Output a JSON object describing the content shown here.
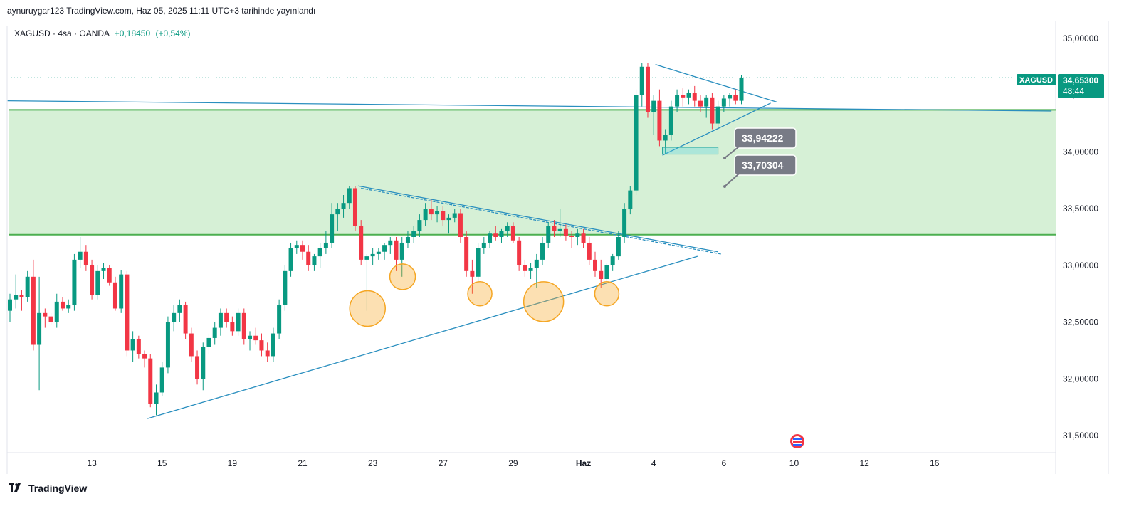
{
  "header": {
    "author": "aynuruygar123",
    "source": "TradingView.com",
    "date_text": "Haz 05, 2025 11:11 UTC+3 tarihinde yayınlandı"
  },
  "symbol_bar": {
    "symbol": "XAGUSD",
    "interval": "4sa",
    "broker": "OANDA",
    "change": "+0,18450",
    "change_pct": "(+0,54%)"
  },
  "price_tag": {
    "symbol": "XAGUSD",
    "price": "34,65300",
    "countdown": "48:44",
    "color": "#089981"
  },
  "footer": {
    "brand": "TradingView"
  },
  "annotations": [
    {
      "label": "33,94222",
      "price": 33.94222
    },
    {
      "label": "33,70304",
      "price": 33.70304
    }
  ],
  "colors": {
    "up": "#089981",
    "down": "#f23645",
    "zone_fill": "#d6f0d6",
    "zone_line": "#4caf50",
    "trendline": "#2a8fbf",
    "circle": "#f5a623",
    "label_bg": "#787b86"
  },
  "chart_data": {
    "type": "candlestick",
    "y_axis": {
      "min": 31.35,
      "max": 35.15,
      "ticks": [
        {
          "value": 35.0,
          "label": "35,00000"
        },
        {
          "value": 34.5,
          "label": "34,50000"
        },
        {
          "value": 34.0,
          "label": "34,00000"
        },
        {
          "value": 33.5,
          "label": "33,50000"
        },
        {
          "value": 33.0,
          "label": "33,00000"
        },
        {
          "value": 32.5,
          "label": "32,50000"
        },
        {
          "value": 32.0,
          "label": "32,00000"
        },
        {
          "value": 31.5,
          "label": "31,50000"
        }
      ]
    },
    "x_axis": {
      "ticks": [
        {
          "bar": 14,
          "label": "13"
        },
        {
          "bar": 26,
          "label": "15"
        },
        {
          "bar": 38,
          "label": "19"
        },
        {
          "bar": 50,
          "label": "21"
        },
        {
          "bar": 62,
          "label": "23"
        },
        {
          "bar": 74,
          "label": "27"
        },
        {
          "bar": 86,
          "label": "29"
        },
        {
          "bar": 98,
          "label": "Haz"
        },
        {
          "bar": 110,
          "label": "4"
        },
        {
          "bar": 122,
          "label": "6"
        },
        {
          "bar": 134,
          "label": "10"
        },
        {
          "bar": 146,
          "label": "12"
        },
        {
          "bar": 158,
          "label": "16"
        }
      ]
    },
    "zone": {
      "top": 34.37,
      "bottom": 33.27
    },
    "last_price": 34.653,
    "candles": [
      [
        32.6,
        32.75,
        32.5,
        32.7
      ],
      [
        32.7,
        32.92,
        32.62,
        32.74
      ],
      [
        32.74,
        32.78,
        32.6,
        32.72
      ],
      [
        32.72,
        32.95,
        32.68,
        32.9
      ],
      [
        32.9,
        33.05,
        32.25,
        32.3
      ],
      [
        32.3,
        32.9,
        31.9,
        32.58
      ],
      [
        32.58,
        32.62,
        32.45,
        32.55
      ],
      [
        32.55,
        32.58,
        32.48,
        32.5
      ],
      [
        32.5,
        32.75,
        32.45,
        32.68
      ],
      [
        32.68,
        32.72,
        32.6,
        32.62
      ],
      [
        32.62,
        32.7,
        32.58,
        32.65
      ],
      [
        32.65,
        33.1,
        32.6,
        33.05
      ],
      [
        33.05,
        33.25,
        32.98,
        33.12
      ],
      [
        33.12,
        33.18,
        32.95,
        33.0
      ],
      [
        33.0,
        33.05,
        32.7,
        32.74
      ],
      [
        32.74,
        33.0,
        32.7,
        32.95
      ],
      [
        32.95,
        33.02,
        32.88,
        32.98
      ],
      [
        32.98,
        33.0,
        32.82,
        32.85
      ],
      [
        32.85,
        32.9,
        32.6,
        32.62
      ],
      [
        32.62,
        32.96,
        32.58,
        32.92
      ],
      [
        32.92,
        32.95,
        32.2,
        32.25
      ],
      [
        32.25,
        32.42,
        32.15,
        32.35
      ],
      [
        32.35,
        32.38,
        32.18,
        32.22
      ],
      [
        32.22,
        32.25,
        32.1,
        32.18
      ],
      [
        32.18,
        32.22,
        31.75,
        31.78
      ],
      [
        31.78,
        31.95,
        31.68,
        31.88
      ],
      [
        31.88,
        32.15,
        31.85,
        32.1
      ],
      [
        32.1,
        32.55,
        32.05,
        32.5
      ],
      [
        32.5,
        32.65,
        32.42,
        32.58
      ],
      [
        32.58,
        32.7,
        32.5,
        32.65
      ],
      [
        32.65,
        32.68,
        32.35,
        32.4
      ],
      [
        32.4,
        32.45,
        32.15,
        32.2
      ],
      [
        32.2,
        32.25,
        31.95,
        32.0
      ],
      [
        32.0,
        32.32,
        31.9,
        32.28
      ],
      [
        32.28,
        32.4,
        32.22,
        32.36
      ],
      [
        32.36,
        32.5,
        32.3,
        32.45
      ],
      [
        32.45,
        32.62,
        32.38,
        32.58
      ],
      [
        32.58,
        32.62,
        32.45,
        32.5
      ],
      [
        32.5,
        32.55,
        32.38,
        32.42
      ],
      [
        32.42,
        32.62,
        32.38,
        32.58
      ],
      [
        32.58,
        32.62,
        32.3,
        32.35
      ],
      [
        32.35,
        32.42,
        32.25,
        32.38
      ],
      [
        32.38,
        32.45,
        32.3,
        32.34
      ],
      [
        32.34,
        32.4,
        32.2,
        32.25
      ],
      [
        32.25,
        32.32,
        32.15,
        32.2
      ],
      [
        32.2,
        32.45,
        32.15,
        32.4
      ],
      [
        32.4,
        32.7,
        32.35,
        32.65
      ],
      [
        32.65,
        33.0,
        32.6,
        32.95
      ],
      [
        32.95,
        33.2,
        32.9,
        33.15
      ],
      [
        33.15,
        33.22,
        33.1,
        33.18
      ],
      [
        33.18,
        33.22,
        33.05,
        33.12
      ],
      [
        33.12,
        33.18,
        32.95,
        33.0
      ],
      [
        33.0,
        33.1,
        32.95,
        33.08
      ],
      [
        33.08,
        33.2,
        32.98,
        33.15
      ],
      [
        33.15,
        33.3,
        33.1,
        33.2
      ],
      [
        33.2,
        33.55,
        33.15,
        33.45
      ],
      [
        33.45,
        33.55,
        33.3,
        33.5
      ],
      [
        33.5,
        33.62,
        33.42,
        33.55
      ],
      [
        33.55,
        33.7,
        33.5,
        33.68
      ],
      [
        33.68,
        33.7,
        33.3,
        33.35
      ],
      [
        33.35,
        33.4,
        33.0,
        33.05
      ],
      [
        33.05,
        33.1,
        32.6,
        33.08
      ],
      [
        33.08,
        33.15,
        33.0,
        33.1
      ],
      [
        33.1,
        33.15,
        33.05,
        33.12
      ],
      [
        33.12,
        33.2,
        33.05,
        33.18
      ],
      [
        33.18,
        33.25,
        33.1,
        33.22
      ],
      [
        33.22,
        33.25,
        32.95,
        33.05
      ],
      [
        33.05,
        33.25,
        32.9,
        33.2
      ],
      [
        33.2,
        33.3,
        33.15,
        33.25
      ],
      [
        33.25,
        33.35,
        33.2,
        33.3
      ],
      [
        33.3,
        33.45,
        33.25,
        33.4
      ],
      [
        33.4,
        33.55,
        33.35,
        33.5
      ],
      [
        33.5,
        33.58,
        33.4,
        33.45
      ],
      [
        33.45,
        33.52,
        33.38,
        33.48
      ],
      [
        33.48,
        33.52,
        33.35,
        33.4
      ],
      [
        33.4,
        33.45,
        33.28,
        33.42
      ],
      [
        33.42,
        33.5,
        33.38,
        33.46
      ],
      [
        33.46,
        33.5,
        33.2,
        33.25
      ],
      [
        33.25,
        33.3,
        32.9,
        32.95
      ],
      [
        32.95,
        33.05,
        32.75,
        32.9
      ],
      [
        32.9,
        33.2,
        32.85,
        33.15
      ],
      [
        33.15,
        33.25,
        33.1,
        33.2
      ],
      [
        33.2,
        33.3,
        33.15,
        33.28
      ],
      [
        33.28,
        33.35,
        33.22,
        33.25
      ],
      [
        33.25,
        33.32,
        33.2,
        33.3
      ],
      [
        33.3,
        33.38,
        33.25,
        33.35
      ],
      [
        33.35,
        33.38,
        33.2,
        33.22
      ],
      [
        33.22,
        33.25,
        32.95,
        33.0
      ],
      [
        33.0,
        33.05,
        32.9,
        32.95
      ],
      [
        32.95,
        33.02,
        32.88,
        32.98
      ],
      [
        32.98,
        33.1,
        32.8,
        33.05
      ],
      [
        33.05,
        33.25,
        33.0,
        33.2
      ],
      [
        33.2,
        33.38,
        33.15,
        33.35
      ],
      [
        33.35,
        33.4,
        33.25,
        33.3
      ],
      [
        33.3,
        33.5,
        33.25,
        33.32
      ],
      [
        33.32,
        33.36,
        33.22,
        33.26
      ],
      [
        33.26,
        33.3,
        33.15,
        33.25
      ],
      [
        33.25,
        33.32,
        33.18,
        33.28
      ],
      [
        33.28,
        33.32,
        33.15,
        33.2
      ],
      [
        33.2,
        33.25,
        33.0,
        33.05
      ],
      [
        33.05,
        33.12,
        32.9,
        32.95
      ],
      [
        32.95,
        33.05,
        32.8,
        32.88
      ],
      [
        32.88,
        33.02,
        32.85,
        33.0
      ],
      [
        33.0,
        33.1,
        32.95,
        33.08
      ],
      [
        33.08,
        33.3,
        33.05,
        33.25
      ],
      [
        33.25,
        33.55,
        33.2,
        33.5
      ],
      [
        33.5,
        33.7,
        33.45,
        33.66
      ],
      [
        33.66,
        34.55,
        33.62,
        34.5
      ],
      [
        34.5,
        34.78,
        34.4,
        34.75
      ],
      [
        34.75,
        34.78,
        34.3,
        34.35
      ],
      [
        34.35,
        34.5,
        34.15,
        34.45
      ],
      [
        34.45,
        34.55,
        34.05,
        34.1
      ],
      [
        34.1,
        34.2,
        33.98,
        34.15
      ],
      [
        34.15,
        34.45,
        34.1,
        34.4
      ],
      [
        34.4,
        34.55,
        34.35,
        34.5
      ],
      [
        34.5,
        34.56,
        34.4,
        34.48
      ],
      [
        34.48,
        34.55,
        34.42,
        34.52
      ],
      [
        34.52,
        34.58,
        34.4,
        34.45
      ],
      [
        34.45,
        34.5,
        34.35,
        34.4
      ],
      [
        34.4,
        34.5,
        34.3,
        34.48
      ],
      [
        34.48,
        34.52,
        34.2,
        34.25
      ],
      [
        34.25,
        34.45,
        34.2,
        34.4
      ],
      [
        34.4,
        34.5,
        34.35,
        34.47
      ],
      [
        34.47,
        34.52,
        34.4,
        34.5
      ],
      [
        34.5,
        34.55,
        34.42,
        34.45
      ],
      [
        34.45,
        34.68,
        34.42,
        34.65
      ]
    ]
  }
}
